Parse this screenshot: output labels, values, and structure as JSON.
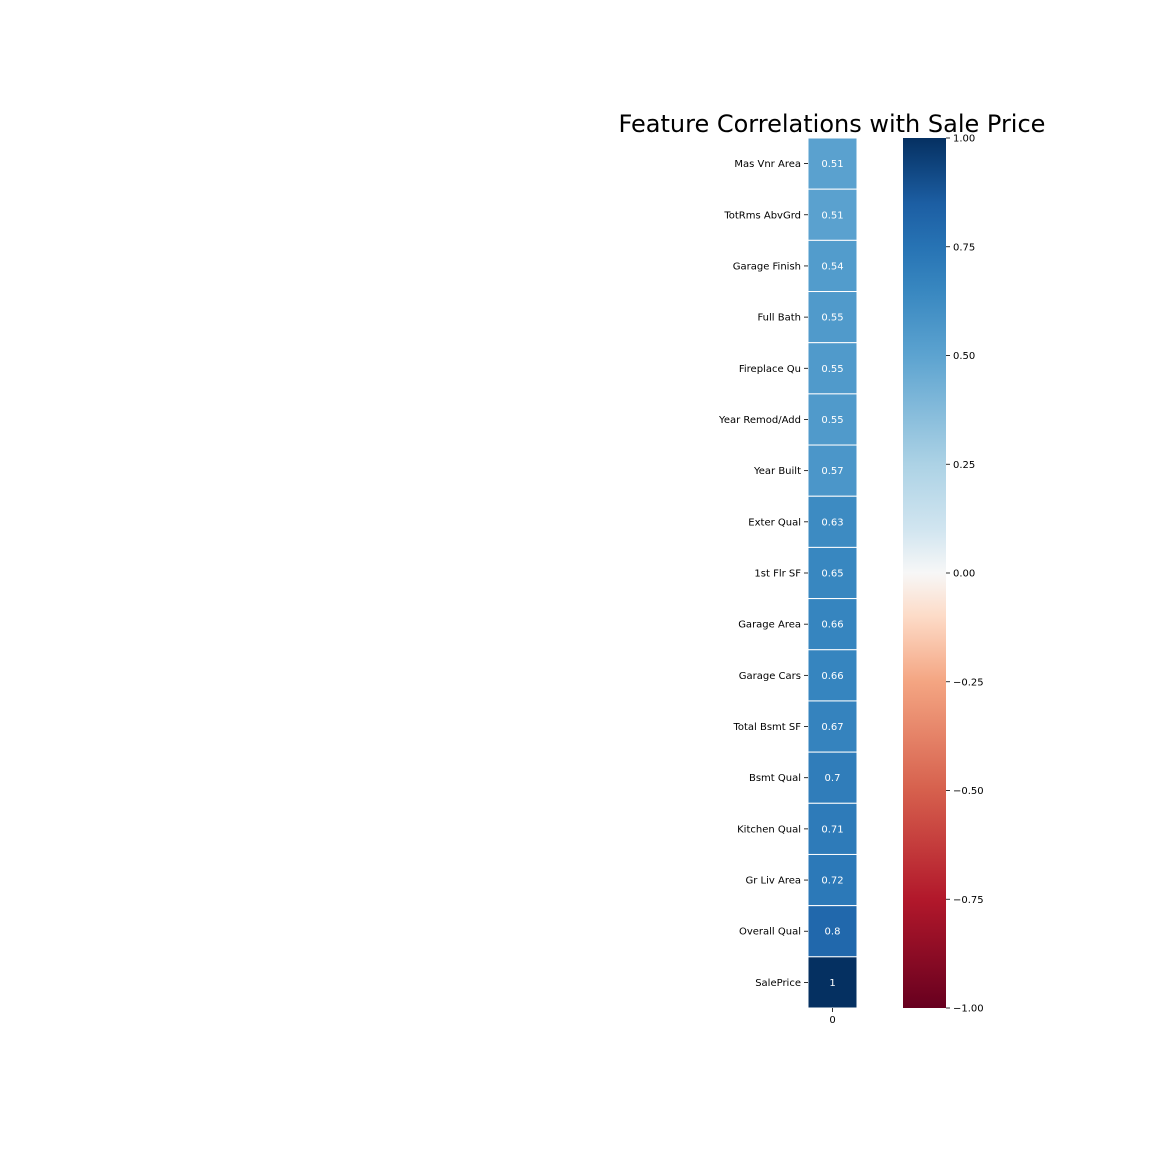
{
  "chart_data": {
    "type": "heatmap",
    "title": "Feature Correlations with Sale Price",
    "rows": [
      "Mas Vnr Area",
      "TotRms AbvGrd",
      "Garage Finish",
      "Full Bath",
      "Fireplace Qu",
      "Year Remod/Add",
      "Year Built",
      "Exter Qual",
      "1st Flr SF",
      "Garage Area",
      "Garage Cars",
      "Total Bsmt SF",
      "Bsmt Qual",
      "Kitchen Qual",
      "Gr Liv Area",
      "Overall Qual",
      "SalePrice"
    ],
    "columns": [
      "0"
    ],
    "values": [
      0.51,
      0.51,
      0.54,
      0.55,
      0.55,
      0.55,
      0.57,
      0.63,
      0.65,
      0.66,
      0.66,
      0.67,
      0.7,
      0.71,
      0.72,
      0.8,
      1
    ],
    "annotations": [
      "0.51",
      "0.51",
      "0.54",
      "0.55",
      "0.55",
      "0.55",
      "0.57",
      "0.63",
      "0.65",
      "0.66",
      "0.66",
      "0.67",
      "0.7",
      "0.71",
      "0.72",
      "0.8",
      "1"
    ],
    "colormap": "RdBu",
    "vmin": -1,
    "vmax": 1,
    "colorbar_ticks": [
      1,
      0.75,
      0.5,
      0.25,
      0,
      -0.25,
      -0.5,
      -0.75,
      -1
    ],
    "colorbar_tick_labels": [
      "1.00",
      "0.75",
      "0.50",
      "0.25",
      "0.00",
      "−0.25",
      "−0.50",
      "−0.75",
      "−1.00"
    ],
    "annotation_color": "#ffffff",
    "cell_border_color": "#ffffff",
    "colorbar_position": "right",
    "grid": false,
    "xlabel": "",
    "ylabel": ""
  }
}
